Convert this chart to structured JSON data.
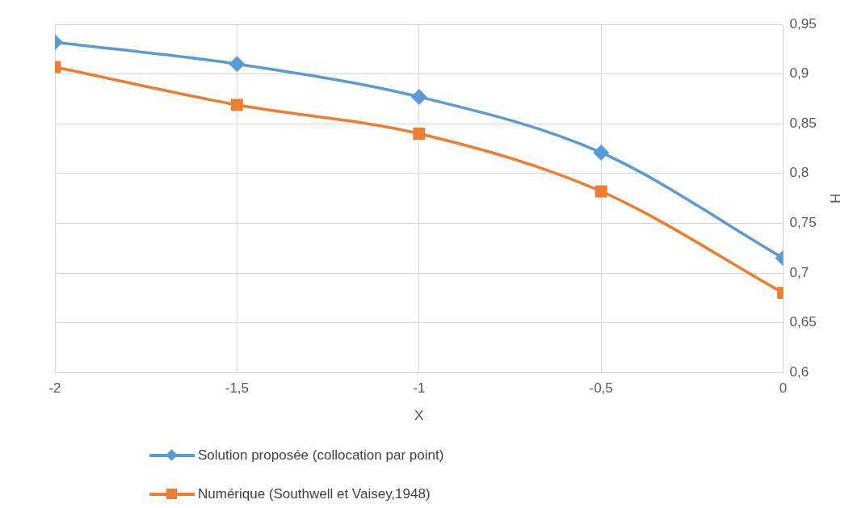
{
  "chart_data": {
    "type": "line",
    "xlabel": "X",
    "ylabel": "H",
    "x": [
      -2,
      -1.5,
      -1,
      -0.5,
      0
    ],
    "series": [
      {
        "name": "Solution proposée (collocation par point)",
        "color": "#5b9bd5",
        "marker": "diamond",
        "values": [
          0.932,
          0.91,
          0.877,
          0.821,
          0.715
        ]
      },
      {
        "name": "Numérique (Southwell et Vaisey,1948)",
        "color": "#ed7d31",
        "marker": "square",
        "values": [
          0.907,
          0.869,
          0.84,
          0.782,
          0.68
        ]
      }
    ],
    "xlim": [
      -2,
      0
    ],
    "xticks": [
      {
        "value": -2,
        "label": "-2"
      },
      {
        "value": -1.5,
        "label": "-1,5"
      },
      {
        "value": -1,
        "label": "-1"
      },
      {
        "value": -0.5,
        "label": "-0,5"
      },
      {
        "value": 0,
        "label": "0"
      }
    ],
    "ylim": [
      0.6,
      0.95
    ],
    "yticks": [
      {
        "value": 0.6,
        "label": "0,6"
      },
      {
        "value": 0.65,
        "label": "0,65"
      },
      {
        "value": 0.7,
        "label": "0,7"
      },
      {
        "value": 0.75,
        "label": "0,75"
      },
      {
        "value": 0.8,
        "label": "0,8"
      },
      {
        "value": 0.85,
        "label": "0,85"
      },
      {
        "value": 0.9,
        "label": "0,9"
      },
      {
        "value": 0.95,
        "label": "0,95"
      }
    ],
    "grid": true,
    "legend": "bottom"
  }
}
